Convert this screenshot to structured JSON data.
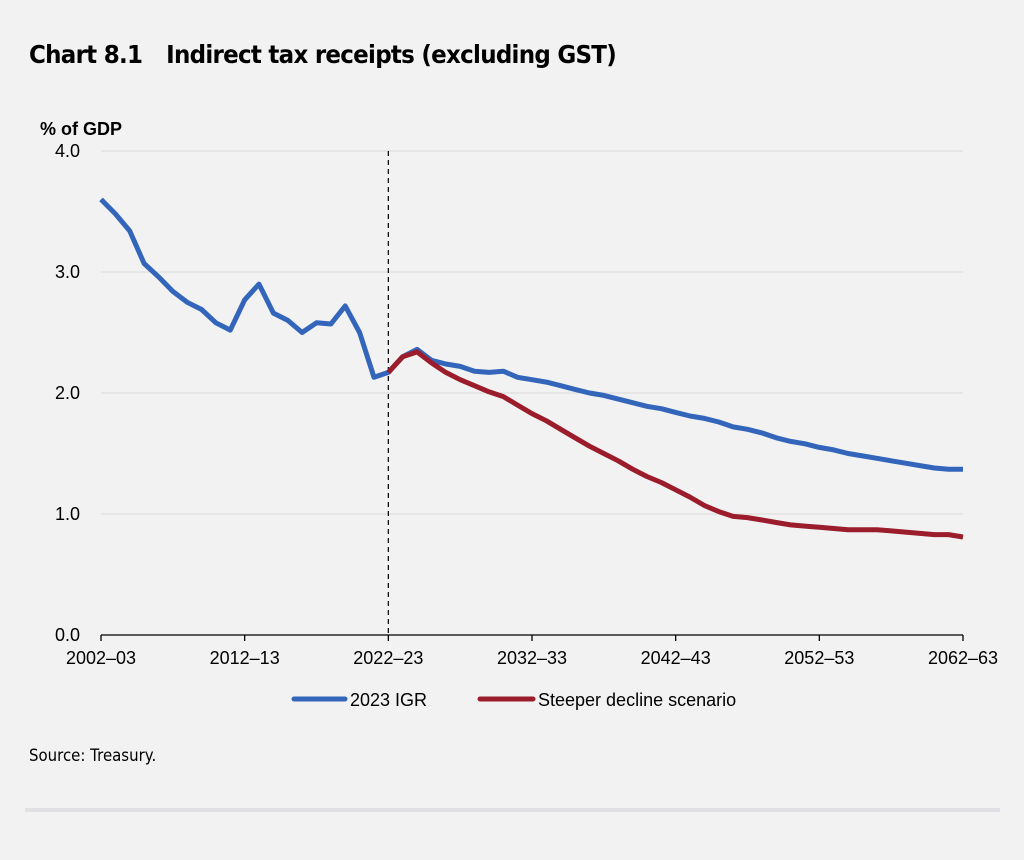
{
  "header": {
    "chart_number": "Chart 8.1",
    "chart_title": "Indirect tax receipts (excluding GST)"
  },
  "footer": {
    "source": "Source: Treasury."
  },
  "colors": {
    "igr": "#3366bb",
    "steeper": "#9b1c2b",
    "grid": "#d9d9d9",
    "background": "#f2f2f2"
  },
  "chart_data": {
    "type": "line",
    "title": "Indirect tax receipts (excluding GST)",
    "xlabel": "",
    "ylabel": "% of GDP",
    "ylim": [
      0,
      4
    ],
    "yticks": [
      0,
      1,
      2,
      3,
      4
    ],
    "ytick_labels": [
      "0.0",
      "1.0",
      "2.0",
      "3.0",
      "4.0"
    ],
    "xlim": [
      2002,
      2062
    ],
    "xticks": [
      2002,
      2012,
      2022,
      2032,
      2042,
      2052,
      2062
    ],
    "xtick_labels": [
      "2002–03",
      "2012–13",
      "2022–23",
      "2032–33",
      "2042–43",
      "2052–53",
      "2062–63"
    ],
    "grid": "horizontal",
    "legend_position": "bottom-center",
    "vertical_marker": {
      "x": 2022,
      "style": "dashed"
    },
    "series": [
      {
        "name": "2023 IGR",
        "color": "#3366bb",
        "x_start": 2002,
        "values": [
          3.6,
          3.48,
          3.34,
          3.07,
          2.96,
          2.84,
          2.75,
          2.69,
          2.58,
          2.52,
          2.77,
          2.9,
          2.66,
          2.6,
          2.5,
          2.58,
          2.57,
          2.72,
          2.5,
          2.13,
          2.17,
          2.3,
          2.36,
          2.27,
          2.24,
          2.22,
          2.18,
          2.17,
          2.18,
          2.13,
          2.11,
          2.09,
          2.06,
          2.03,
          2.0,
          1.98,
          1.95,
          1.92,
          1.89,
          1.87,
          1.84,
          1.81,
          1.79,
          1.76,
          1.72,
          1.7,
          1.67,
          1.63,
          1.6,
          1.58,
          1.55,
          1.53,
          1.5,
          1.48,
          1.46,
          1.44,
          1.42,
          1.4,
          1.38,
          1.37,
          1.37
        ]
      },
      {
        "name": "Steeper decline scenario",
        "color": "#9b1c2b",
        "x_start": 2022,
        "values": [
          2.17,
          2.3,
          2.34,
          2.25,
          2.17,
          2.11,
          2.06,
          2.01,
          1.97,
          1.9,
          1.83,
          1.77,
          1.7,
          1.63,
          1.56,
          1.5,
          1.44,
          1.37,
          1.31,
          1.26,
          1.2,
          1.14,
          1.07,
          1.02,
          0.98,
          0.97,
          0.95,
          0.93,
          0.91,
          0.9,
          0.89,
          0.88,
          0.87,
          0.87,
          0.87,
          0.86,
          0.85,
          0.84,
          0.83,
          0.83,
          0.81
        ]
      }
    ]
  }
}
